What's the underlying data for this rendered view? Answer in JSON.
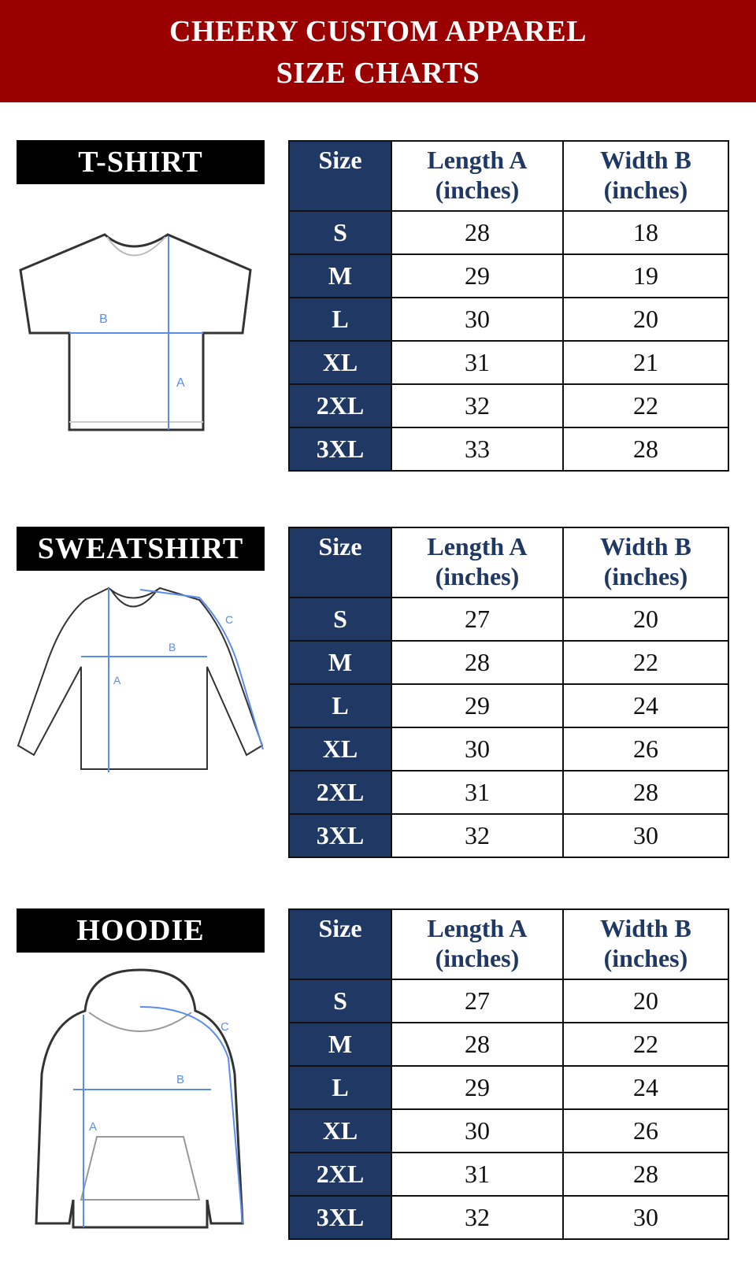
{
  "header": {
    "line1": "CHEERY CUSTOM APPAREL",
    "line2": "SIZE CHARTS"
  },
  "colors": {
    "header_bg": "#9b0000",
    "table_accent": "#1f3864",
    "measure_line": "#5b8def"
  },
  "columns": {
    "size": "Size",
    "length": "Length A (inches)",
    "width": "Width B (inches)"
  },
  "charts": [
    {
      "title": "T-SHIRT",
      "figure_labels": [
        "A",
        "B"
      ],
      "rows": [
        [
          "S",
          "28",
          "18"
        ],
        [
          "M",
          "29",
          "19"
        ],
        [
          "L",
          "30",
          "20"
        ],
        [
          "XL",
          "31",
          "21"
        ],
        [
          "2XL",
          "32",
          "22"
        ],
        [
          "3XL",
          "33",
          "28"
        ]
      ]
    },
    {
      "title": "SWEATSHIRT",
      "figure_labels": [
        "A",
        "B",
        "C"
      ],
      "rows": [
        [
          "S",
          "27",
          "20"
        ],
        [
          "M",
          "28",
          "22"
        ],
        [
          "L",
          "29",
          "24"
        ],
        [
          "XL",
          "30",
          "26"
        ],
        [
          "2XL",
          "31",
          "28"
        ],
        [
          "3XL",
          "32",
          "30"
        ]
      ]
    },
    {
      "title": "HOODIE",
      "figure_labels": [
        "A",
        "B",
        "C"
      ],
      "rows": [
        [
          "S",
          "27",
          "20"
        ],
        [
          "M",
          "28",
          "22"
        ],
        [
          "L",
          "29",
          "24"
        ],
        [
          "XL",
          "30",
          "26"
        ],
        [
          "2XL",
          "31",
          "28"
        ],
        [
          "3XL",
          "32",
          "30"
        ]
      ]
    }
  ]
}
